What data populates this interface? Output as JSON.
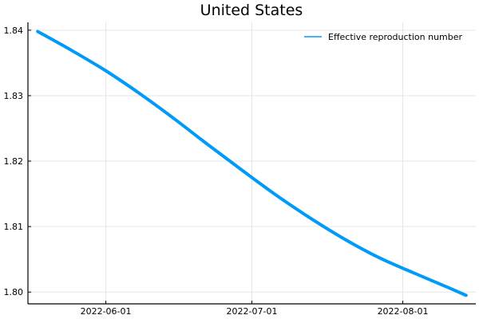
{
  "chart_data": {
    "type": "line",
    "title": "United States",
    "xlabel": "",
    "ylabel": "",
    "x_axis_type": "date",
    "xlim": [
      "2022-05-16",
      "2022-08-16"
    ],
    "ylim": [
      1.7982,
      1.8412
    ],
    "x_ticks": [
      {
        "value": "2022-06-01",
        "label": "2022-06-01"
      },
      {
        "value": "2022-07-01",
        "label": "2022-07-01"
      },
      {
        "value": "2022-08-01",
        "label": "2022-08-01"
      }
    ],
    "y_ticks": [
      {
        "value": 1.8,
        "label": "1.80"
      },
      {
        "value": 1.81,
        "label": "1.81"
      },
      {
        "value": 1.82,
        "label": "1.82"
      },
      {
        "value": 1.83,
        "label": "1.83"
      },
      {
        "value": 1.84,
        "label": "1.84"
      }
    ],
    "grid": true,
    "legend_position": "top-right",
    "series": [
      {
        "name": "Effective reproduction number",
        "color": "#009af9",
        "x": [
          "2022-05-18",
          "2022-05-25",
          "2022-06-01",
          "2022-06-08",
          "2022-06-15",
          "2022-06-22",
          "2022-06-29",
          "2022-07-06",
          "2022-07-13",
          "2022-07-20",
          "2022-07-27",
          "2022-08-03",
          "2022-08-10",
          "2022-08-14"
        ],
        "y": [
          1.8398,
          1.8369,
          1.8338,
          1.8303,
          1.8265,
          1.8225,
          1.8186,
          1.8148,
          1.8113,
          1.8081,
          1.8053,
          1.803,
          1.8008,
          1.7995
        ]
      }
    ]
  }
}
